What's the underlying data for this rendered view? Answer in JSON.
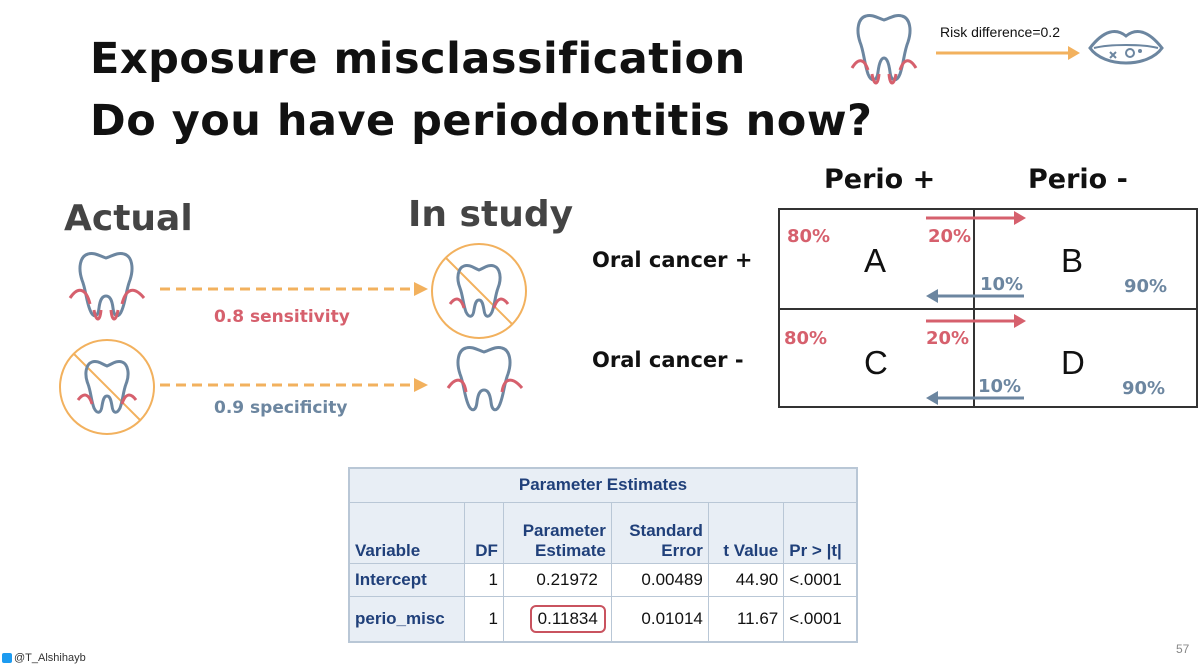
{
  "slide": {
    "title_line1": "Exposure misclassification",
    "title_line2": "Do you have periodontitis now?",
    "page_number": "57",
    "footer_handle": "@T_Alshihayb"
  },
  "top_right": {
    "risk_label": "Risk difference=0.2",
    "icons": [
      "tooth-gum-icon",
      "mouth-lesion-icon"
    ]
  },
  "left_panel": {
    "actual_label": "Actual",
    "study_label": "In study",
    "sensitivity_label": "0.8 sensitivity",
    "specificity_label": "0.9 specificity"
  },
  "grid": {
    "col_headers": [
      "Perio +",
      "Perio -"
    ],
    "row_headers": [
      "Oral cancer +",
      "Oral cancer -"
    ],
    "cells": [
      "A",
      "B",
      "C",
      "D"
    ],
    "pct_80": "80%",
    "pct_20": "20%",
    "pct_10": "10%",
    "pct_90": "90%"
  },
  "colors": {
    "red": "#d6606d",
    "blue": "#6c86a0",
    "orange": "#f2b15e",
    "sas_blue": "#20407a"
  },
  "sas_table": {
    "caption": "Parameter Estimates",
    "headers": {
      "variable": "Variable",
      "df": "DF",
      "est1": "Parameter",
      "est2": "Estimate",
      "se1": "Standard",
      "se2": "Error",
      "t": "t Value",
      "p": "Pr > |t|"
    },
    "rows": [
      {
        "variable": "Intercept",
        "df": "1",
        "estimate": "0.21972",
        "se": "0.00489",
        "t": "44.90",
        "p": "<.0001"
      },
      {
        "variable": "perio_misc",
        "df": "1",
        "estimate": "0.11834",
        "se": "0.01014",
        "t": "11.67",
        "p": "<.0001"
      }
    ]
  }
}
